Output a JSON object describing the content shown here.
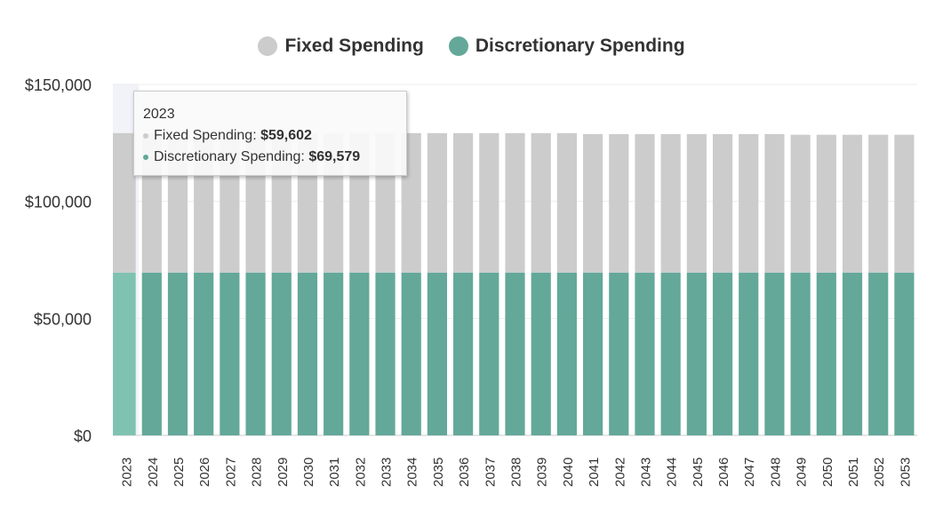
{
  "chart_data": {
    "type": "bar",
    "stacked": true,
    "title": "",
    "xlabel": "",
    "ylabel": "",
    "ylim": [
      0,
      150000
    ],
    "yticks": [
      "$0",
      "$50,000",
      "$100,000",
      "$150,000"
    ],
    "ytick_values": [
      0,
      50000,
      100000,
      150000
    ],
    "categories": [
      "2023",
      "2024",
      "2025",
      "2026",
      "2027",
      "2028",
      "2029",
      "2030",
      "2031",
      "2032",
      "2033",
      "2034",
      "2035",
      "2036",
      "2037",
      "2038",
      "2039",
      "2040",
      "2041",
      "2042",
      "2043",
      "2044",
      "2045",
      "2046",
      "2047",
      "2048",
      "2049",
      "2050",
      "2051",
      "2052",
      "2053"
    ],
    "series": [
      {
        "name": "Discretionary Spending",
        "color": "#63a899",
        "values": [
          69579,
          69579,
          69579,
          69579,
          69579,
          69579,
          69579,
          69579,
          69579,
          69579,
          69579,
          69579,
          69579,
          69579,
          69579,
          69579,
          69579,
          69579,
          69579,
          69579,
          69579,
          69579,
          69579,
          69579,
          69579,
          69579,
          69579,
          69579,
          69579,
          69579,
          69579
        ]
      },
      {
        "name": "Fixed Spending",
        "color": "#cccccc",
        "values": [
          59602,
          59602,
          59602,
          59602,
          59602,
          59602,
          59602,
          59602,
          59602,
          59602,
          59602,
          59602,
          59602,
          59602,
          59602,
          59602,
          59602,
          59602,
          59200,
          59200,
          59200,
          59200,
          59200,
          59200,
          59200,
          59200,
          58900,
          58900,
          58900,
          58900,
          58900
        ]
      }
    ],
    "legend": {
      "placement": "top-center",
      "items": [
        "Fixed Spending",
        "Discretionary Spending"
      ]
    },
    "tooltip": {
      "title": "2023",
      "fixed_label": "Fixed Spending:",
      "fixed_value": "$59,602",
      "disc_label": "Discretionary Spending:",
      "disc_value": "$69,579"
    },
    "hover_color": "#7fc2b2"
  }
}
